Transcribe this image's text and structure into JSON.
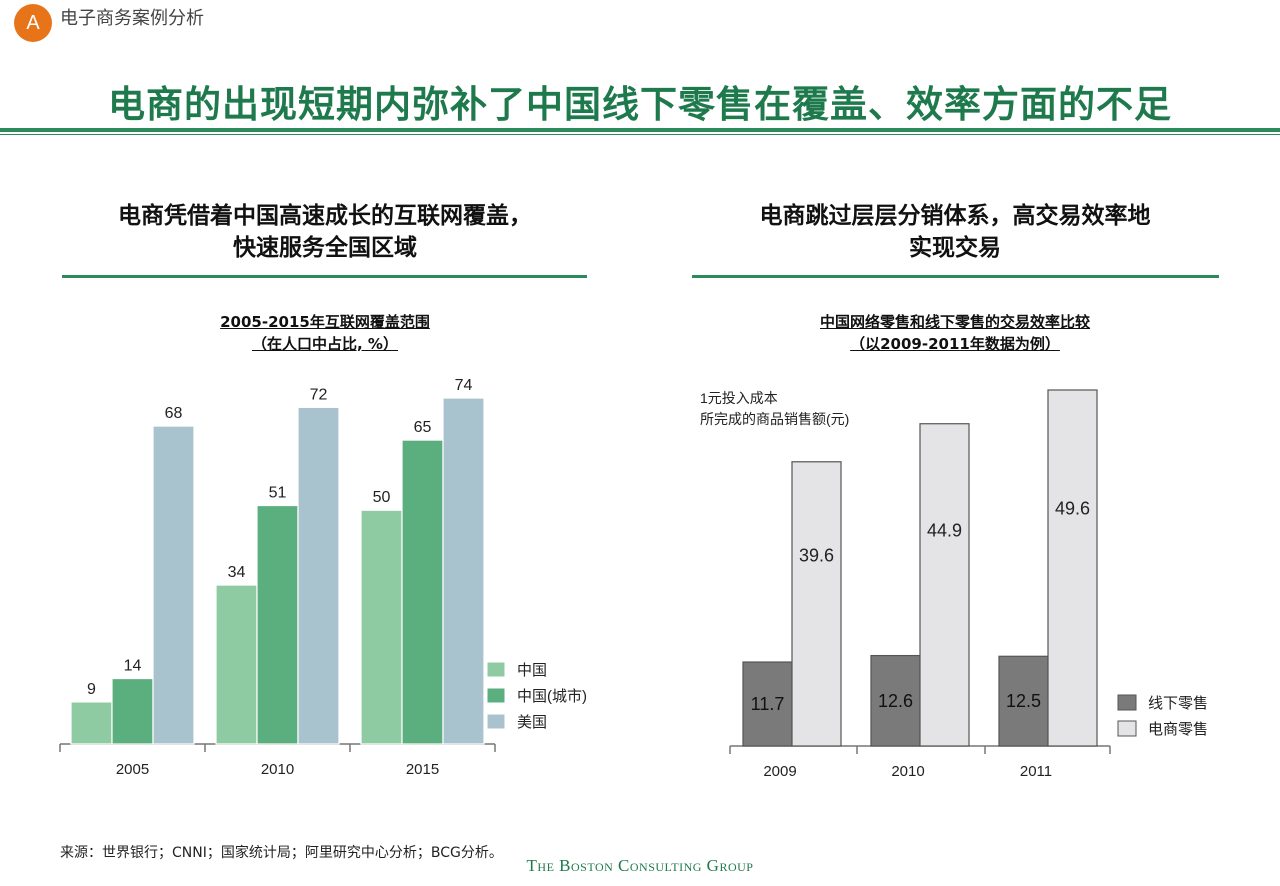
{
  "header": {
    "badge": "A",
    "section_label": "电子商务案例分析",
    "main_title": "电商的出现短期内弥补了中国线下零售在覆盖、效率方面的不足"
  },
  "left_panel": {
    "heading_line1": "电商凭借着中国高速成长的互联网覆盖，",
    "heading_line2": "快速服务全国区域"
  },
  "right_panel": {
    "heading_line1": "电商跳过层层分销体系，高交易效率地",
    "heading_line2": "实现交易"
  },
  "chart_data": [
    {
      "type": "bar",
      "title": "2005-2015年互联网覆盖范围",
      "subtitle": "（在人口中占比, %）",
      "categories": [
        "2005",
        "2010",
        "2015"
      ],
      "series": [
        {
          "name": "中国",
          "values": [
            9,
            34,
            50
          ],
          "color": "#8FCBA2"
        },
        {
          "name": "中国(城市)",
          "values": [
            14,
            51,
            65
          ],
          "color": "#5BAE7E"
        },
        {
          "name": "美国",
          "values": [
            68,
            72,
            74
          ],
          "color": "#A9C3CE"
        }
      ],
      "ylim": [
        0,
        74
      ],
      "legend": "right",
      "grid": false
    },
    {
      "type": "bar",
      "title": "中国网络零售和线下零售的交易效率比较",
      "subtitle": "（以2009-2011年数据为例）",
      "annotation_line1": "1元投入成本",
      "annotation_line2": "所完成的商品销售额(元)",
      "categories": [
        "2009",
        "2010",
        "2011"
      ],
      "series": [
        {
          "name": "线下零售",
          "values": [
            11.7,
            12.6,
            12.5
          ],
          "color": "#7A7A7A"
        },
        {
          "name": "电商零售",
          "values": [
            39.6,
            44.9,
            49.6
          ],
          "color": "#E4E4E6"
        }
      ],
      "ylim": [
        0,
        49.6
      ],
      "legend": "right",
      "grid": false
    }
  ],
  "footer": {
    "source": "来源：世界银行；CNNI；国家统计局；阿里研究中心分析；BCG分析。",
    "brand": "The Boston Consulting Group"
  }
}
